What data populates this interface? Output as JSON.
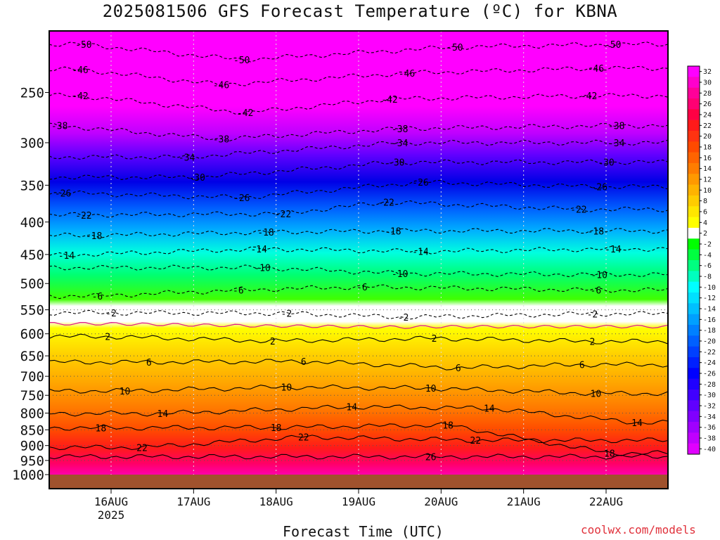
{
  "header": {
    "title": "2025081506 GFS Forecast Temperature (ºC) for KBNA"
  },
  "footer": {
    "xlabel": "Forecast Time (UTC)",
    "credit": "coolwx.com/models"
  },
  "chart_data": {
    "type": "heatmap",
    "title": "2025081506 GFS Forecast Temperature (ºC) for KBNA",
    "xlabel": "Forecast Time (UTC)",
    "ylabel": "",
    "y_axis": {
      "scale": "log-pressure",
      "ylim_hPa": [
        1000,
        200
      ],
      "ticks": [
        "250",
        "300",
        "350",
        "400",
        "450",
        "500",
        "550",
        "600",
        "650",
        "700",
        "750",
        "800",
        "850",
        "900",
        "950",
        "1000"
      ]
    },
    "x_axis": {
      "ticks": [
        {
          "label": "16AUG",
          "sublabel": "2025",
          "hour": 24
        },
        {
          "label": "17AUG",
          "sublabel": "",
          "hour": 48
        },
        {
          "label": "18AUG",
          "sublabel": "",
          "hour": 72
        },
        {
          "label": "19AUG",
          "sublabel": "",
          "hour": 96
        },
        {
          "label": "20AUG",
          "sublabel": "",
          "hour": 120
        },
        {
          "label": "21AUG",
          "sublabel": "",
          "hour": 144
        },
        {
          "label": "22AUG",
          "sublabel": "",
          "hour": 168
        }
      ],
      "hour_range": [
        6,
        186
      ]
    },
    "grid": true,
    "colorbar": {
      "labels": [
        "32",
        "30",
        "28",
        "26",
        "24",
        "22",
        "20",
        "18",
        "16",
        "14",
        "12",
        "10",
        "8",
        "6",
        "4",
        "2",
        "-2",
        "-4",
        "-6",
        "-8",
        "-10",
        "-12",
        "-14",
        "-16",
        "-18",
        "-20",
        "-22",
        "-24",
        "-26",
        "-28",
        "-30",
        "-32",
        "-34",
        "-36",
        "-38",
        "-40"
      ],
      "colors": [
        "#ff00ff",
        "#ff00cc",
        "#ff0099",
        "#ff0073",
        "#ff0044",
        "#ff1a1a",
        "#ff3311",
        "#ff4a00",
        "#ff6400",
        "#ff7d00",
        "#ff9900",
        "#ffb300",
        "#ffcc00",
        "#ffe600",
        "#ffff00",
        "#ffffff",
        "#00ff00",
        "#00ff40",
        "#00ff80",
        "#00ffbf",
        "#00ffff",
        "#00e0ff",
        "#00c0ff",
        "#00a0ff",
        "#0080ff",
        "#0060ff",
        "#0040ff",
        "#0020ff",
        "#0000ff",
        "#2000ff",
        "#4000ff",
        "#6000ff",
        "#8000ff",
        "#a000ff",
        "#c000ff",
        "#e000ff"
      ]
    },
    "contours": [
      {
        "level": -50,
        "style": "dashed",
        "labels": [
          {
            "hour": 16,
            "p": 210
          },
          {
            "hour": 62,
            "p": 222
          },
          {
            "hour": 124,
            "p": 212
          },
          {
            "hour": 170,
            "p": 210
          }
        ]
      },
      {
        "level": -46,
        "style": "dashed",
        "labels": [
          {
            "hour": 15,
            "p": 230
          },
          {
            "hour": 56,
            "p": 243
          },
          {
            "hour": 110,
            "p": 233
          },
          {
            "hour": 165,
            "p": 229
          }
        ]
      },
      {
        "level": -42,
        "style": "dashed",
        "labels": [
          {
            "hour": 15,
            "p": 253
          },
          {
            "hour": 63,
            "p": 269
          },
          {
            "hour": 105,
            "p": 256
          },
          {
            "hour": 163,
            "p": 253
          }
        ]
      },
      {
        "level": -38,
        "style": "dashed",
        "labels": [
          {
            "hour": 9,
            "p": 282
          },
          {
            "hour": 56,
            "p": 296
          },
          {
            "hour": 108,
            "p": 285
          },
          {
            "hour": 171,
            "p": 282
          }
        ]
      },
      {
        "level": -34,
        "style": "dashed",
        "labels": [
          {
            "hour": 46,
            "p": 316
          },
          {
            "hour": 108,
            "p": 300
          },
          {
            "hour": 171,
            "p": 300
          }
        ]
      },
      {
        "level": -30,
        "style": "dashed",
        "labels": [
          {
            "hour": 49,
            "p": 340
          },
          {
            "hour": 107,
            "p": 322
          },
          {
            "hour": 168,
            "p": 322
          }
        ]
      },
      {
        "level": -26,
        "style": "dashed",
        "labels": [
          {
            "hour": 10,
            "p": 360
          },
          {
            "hour": 62,
            "p": 366
          },
          {
            "hour": 114,
            "p": 346
          },
          {
            "hour": 166,
            "p": 352
          }
        ]
      },
      {
        "level": -22,
        "style": "dashed",
        "labels": [
          {
            "hour": 16,
            "p": 390
          },
          {
            "hour": 74,
            "p": 388
          },
          {
            "hour": 104,
            "p": 372
          },
          {
            "hour": 160,
            "p": 382
          }
        ]
      },
      {
        "level": -18,
        "style": "dashed",
        "labels": [
          {
            "hour": 19,
            "p": 420
          },
          {
            "hour": 69,
            "p": 415
          },
          {
            "hour": 106,
            "p": 413
          },
          {
            "hour": 165,
            "p": 413
          }
        ]
      },
      {
        "level": -14,
        "style": "dashed",
        "labels": [
          {
            "hour": 11,
            "p": 451
          },
          {
            "hour": 67,
            "p": 441
          },
          {
            "hour": 114,
            "p": 445
          },
          {
            "hour": 170,
            "p": 441
          }
        ]
      },
      {
        "level": -10,
        "style": "dashed",
        "labels": [
          {
            "hour": 68,
            "p": 472
          },
          {
            "hour": 108,
            "p": 482
          },
          {
            "hour": 166,
            "p": 484
          }
        ]
      },
      {
        "level": -6,
        "style": "dashed",
        "labels": [
          {
            "hour": 20,
            "p": 523
          },
          {
            "hour": 61,
            "p": 512
          },
          {
            "hour": 97,
            "p": 506
          },
          {
            "hour": 165,
            "p": 512
          }
        ]
      },
      {
        "level": -2,
        "style": "dashed",
        "labels": [
          {
            "hour": 24,
            "p": 556
          },
          {
            "hour": 75,
            "p": 557
          },
          {
            "hour": 109,
            "p": 565
          },
          {
            "hour": 164,
            "p": 558
          }
        ]
      },
      {
        "level": 2,
        "style": "solid",
        "labels": [
          {
            "hour": 23,
            "p": 606
          },
          {
            "hour": 71,
            "p": 616
          },
          {
            "hour": 118,
            "p": 610
          },
          {
            "hour": 164,
            "p": 617
          }
        ]
      },
      {
        "level": 6,
        "style": "solid",
        "labels": [
          {
            "hour": 35,
            "p": 665
          },
          {
            "hour": 80,
            "p": 663
          },
          {
            "hour": 125,
            "p": 679
          },
          {
            "hour": 161,
            "p": 671
          }
        ]
      },
      {
        "level": 10,
        "style": "solid",
        "labels": [
          {
            "hour": 28,
            "p": 738
          },
          {
            "hour": 75,
            "p": 728
          },
          {
            "hour": 117,
            "p": 731
          },
          {
            "hour": 165,
            "p": 745
          }
        ]
      },
      {
        "level": 14,
        "style": "solid",
        "labels": [
          {
            "hour": 39,
            "p": 801
          },
          {
            "hour": 94,
            "p": 782
          },
          {
            "hour": 134,
            "p": 786
          },
          {
            "hour": 177,
            "p": 828
          }
        ]
      },
      {
        "level": 18,
        "style": "solid",
        "labels": [
          {
            "hour": 21,
            "p": 844
          },
          {
            "hour": 72,
            "p": 843
          },
          {
            "hour": 122,
            "p": 835
          },
          {
            "hour": 169,
            "p": 925
          }
        ]
      },
      {
        "level": 22,
        "style": "solid",
        "labels": [
          {
            "hour": 33,
            "p": 906
          },
          {
            "hour": 80,
            "p": 872
          },
          {
            "hour": 130,
            "p": 883
          }
        ]
      },
      {
        "level": 26,
        "style": "solid",
        "labels": [
          {
            "hour": 117,
            "p": 937
          }
        ]
      }
    ],
    "freezing_line": {
      "level": 0,
      "color": "#e0208a"
    }
  }
}
